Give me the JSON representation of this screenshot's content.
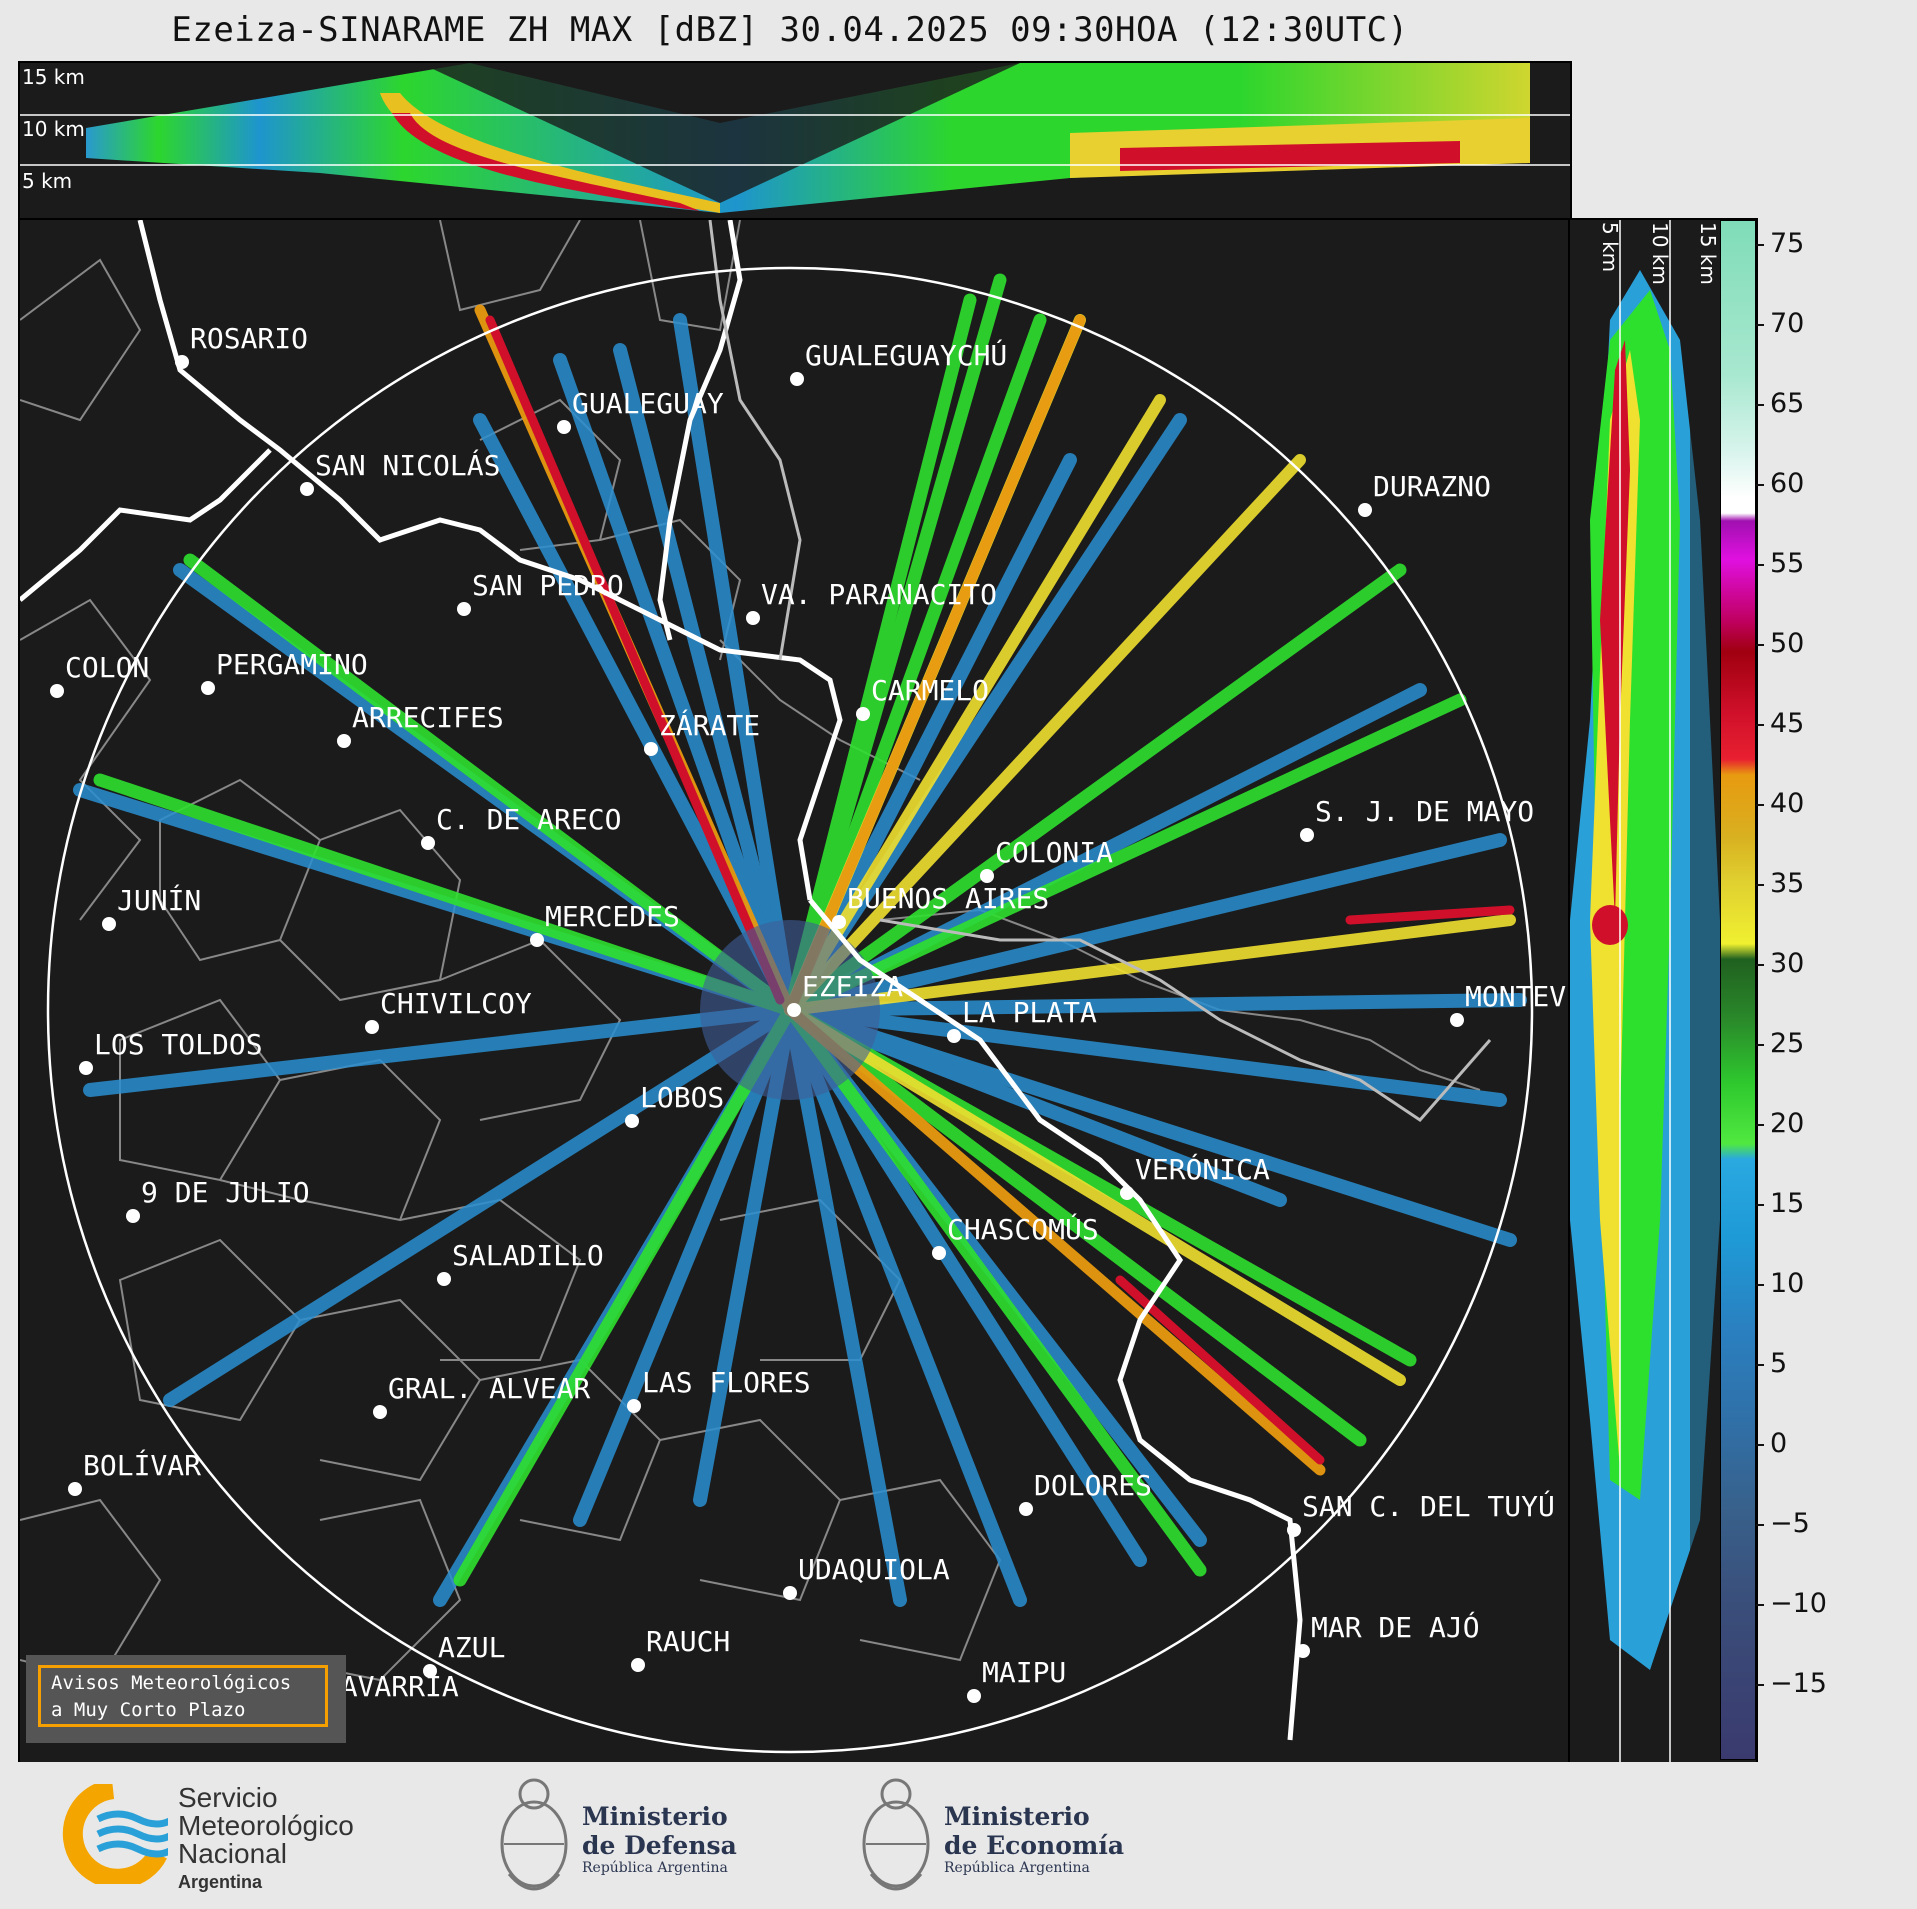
{
  "title": "Ezeiza-SINARAME ZH MAX [dBZ] 30.04.2025 09:30HOA (12:30UTC)",
  "height_labels": {
    "top": [
      "15 km",
      "10 km",
      "5 km"
    ],
    "side": [
      "5 km",
      "10 km",
      "15 km"
    ]
  },
  "colorbar": {
    "unit": "dBZ",
    "ticks": [
      "75",
      "70",
      "65",
      "60",
      "55",
      "50",
      "45",
      "40",
      "35",
      "30",
      "25",
      "20",
      "15",
      "10",
      "5",
      "0",
      "−5",
      "−10",
      "−15"
    ],
    "colors": {
      "min": "#3a3a6e",
      "blue": "#1e9bd7",
      "green": "#2ee02e",
      "yellow": "#f0f030",
      "orange": "#e89a10",
      "red": "#d0102a",
      "magenta": "#e010e0",
      "white": "#ffffff",
      "max": "#7fdcb8"
    }
  },
  "cities": [
    {
      "name": "ROSARIO"
    },
    {
      "name": "GUALEGUAYCHÚ"
    },
    {
      "name": "GUALEGUAY"
    },
    {
      "name": "SAN NICOLÁS"
    },
    {
      "name": "DURAZNO"
    },
    {
      "name": "SAN PEDRO"
    },
    {
      "name": "VA. PARANACITO"
    },
    {
      "name": "COLON"
    },
    {
      "name": "PERGAMINO"
    },
    {
      "name": "CARMELO"
    },
    {
      "name": "ARRECIFES"
    },
    {
      "name": "ZÁRATE"
    },
    {
      "name": "S. J. DE MAYO"
    },
    {
      "name": "C. DE ARECO"
    },
    {
      "name": "COLONIA"
    },
    {
      "name": "JUNÍN"
    },
    {
      "name": "BUENOS AIRES"
    },
    {
      "name": "MERCEDES"
    },
    {
      "name": "EZEIZA"
    },
    {
      "name": "MONTEV"
    },
    {
      "name": "CHIVILCOY"
    },
    {
      "name": "LA PLATA"
    },
    {
      "name": "LOS TOLDOS"
    },
    {
      "name": "LOBOS"
    },
    {
      "name": "VERÓNICA"
    },
    {
      "name": "9 DE JULIO"
    },
    {
      "name": "CHASCOMÚS"
    },
    {
      "name": "SALADILLO"
    },
    {
      "name": "GRAL. ALVEAR"
    },
    {
      "name": "LAS FLORES"
    },
    {
      "name": "BOLÍVAR"
    },
    {
      "name": "DOLORES"
    },
    {
      "name": "SAN C. DEL TUYÚ"
    },
    {
      "name": "UDAQUIOLA"
    },
    {
      "name": "MAR DE AJÓ"
    },
    {
      "name": "AZUL"
    },
    {
      "name": "RAUCH"
    },
    {
      "name": "OLAVARRÍA"
    },
    {
      "name": "MAIPU"
    }
  ],
  "warning": {
    "line1": "Avisos Meteorológicos",
    "line2": "a Muy Corto Plazo"
  },
  "logos": {
    "smn": {
      "line1": "Servicio",
      "line2": "Meteorológico",
      "line3": "Nacional",
      "line4": "Argentina"
    },
    "defensa": {
      "line1": "Ministerio",
      "line2": "de Defensa",
      "line3": "República Argentina"
    },
    "economia": {
      "line1": "Ministerio",
      "line2": "de Economía",
      "line3": "República Argentina"
    }
  }
}
